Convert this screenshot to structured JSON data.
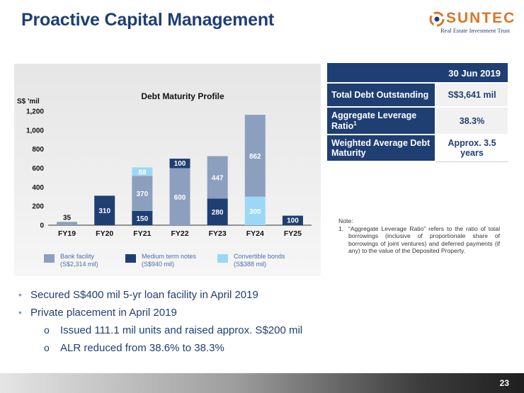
{
  "slide": {
    "title": "Proactive Capital Management",
    "page_number": "23"
  },
  "logo": {
    "name": "SUNTEC",
    "subtitle": "Real Estate Investment Trust"
  },
  "colors": {
    "bank_facility": "#8c9fbf",
    "medium_term_notes": "#1f3f73",
    "convertible_bonds": "#9ad8f6",
    "title_blue": "#1f3f73"
  },
  "chart_data": {
    "type": "bar",
    "stacked": true,
    "title": "Debt Maturity Profile",
    "ylabel": "S$ 'mil",
    "xlabel": "",
    "ylim": [
      0,
      1200
    ],
    "yticks": [
      "0",
      "200",
      "400",
      "600",
      "800",
      "1,000",
      "1,200"
    ],
    "ytick_values": [
      0,
      200,
      400,
      600,
      800,
      1000,
      1200
    ],
    "categories": [
      "FY19",
      "FY20",
      "FY21",
      "FY22",
      "FY23",
      "FY24",
      "FY25"
    ],
    "series": [
      {
        "name": "Medium term notes",
        "legend_amount": "(S$940 mil)",
        "color_key": "medium_term_notes",
        "values": [
          0,
          310,
          150,
          0,
          280,
          0,
          100
        ],
        "labels": [
          "",
          "310",
          "150",
          "",
          "280",
          "",
          "100"
        ]
      },
      {
        "name": "Convertible bonds",
        "legend_amount": "(S$388 mil)",
        "color_key": "convertible_bonds",
        "values": [
          0,
          0,
          0,
          0,
          0,
          300,
          0
        ],
        "labels": [
          "",
          "",
          "",
          "",
          "",
          "300",
          ""
        ]
      },
      {
        "name": "Bank facility",
        "legend_amount": "(S$2,314 mil)",
        "color_key": "bank_facility",
        "values": [
          35,
          0,
          370,
          600,
          447,
          862,
          0
        ],
        "labels": [
          "35",
          "",
          "370",
          "600",
          "447",
          "862",
          ""
        ]
      },
      {
        "name": "Convertible bonds",
        "legend_amount": "(S$388 mil)",
        "color_key": "convertible_bonds",
        "values": [
          0,
          0,
          88,
          0,
          0,
          0,
          0
        ],
        "labels": [
          "",
          "",
          "88",
          "",
          "",
          "",
          ""
        ]
      },
      {
        "name": "Medium term notes",
        "legend_amount": "(S$940 mil)",
        "color_key": "medium_term_notes",
        "values": [
          0,
          0,
          0,
          100,
          0,
          0,
          0
        ],
        "labels": [
          "",
          "",
          "",
          "100",
          "",
          "",
          ""
        ]
      }
    ],
    "legend": [
      {
        "label": "Bank facility",
        "amount": "(S$2,314 mil)",
        "color_key": "bank_facility"
      },
      {
        "label": "Medium term notes",
        "amount": "(S$940 mil)",
        "color_key": "medium_term_notes"
      },
      {
        "label": "Convertible bonds",
        "amount": "(S$388 mil)",
        "color_key": "convertible_bonds"
      }
    ]
  },
  "table": {
    "header": "30 Jun 2019",
    "rows": [
      {
        "label": "Total Debt Outstanding",
        "value": "S$3,641 mil"
      },
      {
        "label": "Aggregate Leverage Ratio",
        "superscript": "1",
        "value": "38.3%"
      },
      {
        "label": "Weighted Average Debt Maturity",
        "value": "Approx. 3.5 years"
      }
    ]
  },
  "note": {
    "title": "Note:",
    "number": "1.",
    "text": "“Aggregate Leverage Ratio” refers to the ratio of total borrowings (inclusive of proportionate share of borrowings of joint ventures) and deferred payments (if any) to the value of the Deposited Property."
  },
  "bullets": [
    {
      "text": "Secured S$400 mil 5-yr loan facility in April 2019",
      "sub": []
    },
    {
      "text": "Private placement in April 2019",
      "sub": [
        "Issued 111.1 mil units and raised approx. S$200 mil",
        "ALR reduced from 38.6% to 38.3%"
      ]
    }
  ]
}
